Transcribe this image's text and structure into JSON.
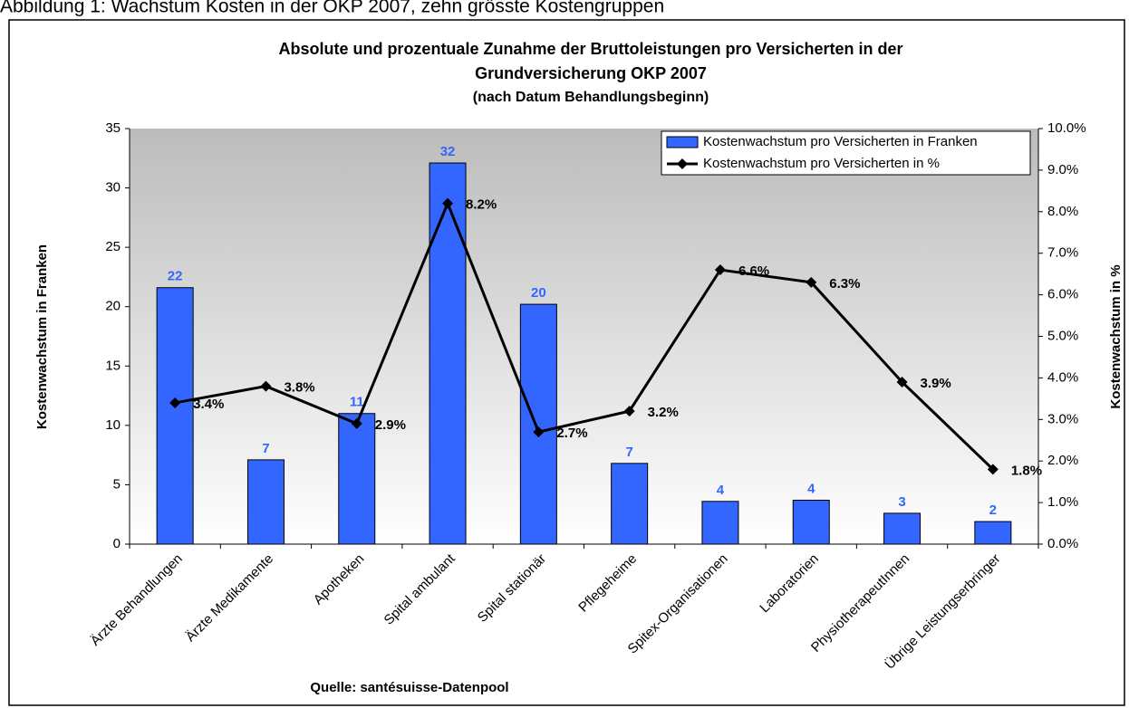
{
  "heading": "Abbildung 1: Wachstum Kosten in der OKP 2007, zehn grösste Kostengruppen",
  "chart_data": {
    "type": "bar-line",
    "title": [
      "Absolute und prozentuale Zunahme der Bruttoleistungen pro Versicherten in der",
      "Grundversicherung OKP 2007",
      "(nach Datum Behandlungsbeginn)"
    ],
    "ylabel": "Kostenwachstum in Franken",
    "y2label": "Kostenwachstum in %",
    "xlabel": "Quelle: santésuisse-Datenpool",
    "categories": [
      "Ärzte Behandlungen",
      "Ärzte Medikamente",
      "Apotheken",
      "Spital ambulant",
      "Spital stationär",
      "Pflegeheime",
      "Spitex-Organisationen",
      "Laboratorien",
      "PhysiotherapeutInnen",
      "Übrige Leistungserbringer"
    ],
    "series": [
      {
        "name": "Kostenwachstum pro Versicherten in Franken",
        "color": "#3366ff",
        "axis": "y",
        "values": [
          21.6,
          7.1,
          11.0,
          32.1,
          20.2,
          6.8,
          3.6,
          3.7,
          2.6,
          1.9
        ],
        "value_labels": [
          "22",
          "7",
          "11",
          "32",
          "20",
          "7",
          "4",
          "4",
          "3",
          "2"
        ]
      },
      {
        "name": "Kostenwachstum pro Versicherten in %",
        "color": "#000000",
        "axis": "y2",
        "values": [
          3.4,
          3.8,
          2.9,
          8.2,
          2.7,
          3.2,
          6.6,
          6.3,
          3.9,
          1.8
        ],
        "value_labels": [
          "3.4%",
          "3.8%",
          "2.9%",
          "8.2%",
          "2.7%",
          "3.2%",
          "6.6%",
          "6.3%",
          "3.9%",
          "1.8%"
        ]
      }
    ],
    "ylim": [
      0,
      35
    ],
    "yticks": [
      0,
      5,
      10,
      15,
      20,
      25,
      30,
      35
    ],
    "y2lim": [
      0,
      10
    ],
    "y2ticks": [
      {
        "value": 0,
        "label": "0.0%"
      },
      {
        "value": 1,
        "label": "1.0%"
      },
      {
        "value": 2,
        "label": "2.0%"
      },
      {
        "value": 3,
        "label": "3.0%"
      },
      {
        "value": 4,
        "label": "4.0%"
      },
      {
        "value": 5,
        "label": "5.0%"
      },
      {
        "value": 6,
        "label": "6.0%"
      },
      {
        "value": 7,
        "label": "7.0%"
      },
      {
        "value": 8,
        "label": "8.0%"
      },
      {
        "value": 9,
        "label": "9.0%"
      },
      {
        "value": 10,
        "label": "10.0%"
      }
    ],
    "legend": "upper right"
  }
}
